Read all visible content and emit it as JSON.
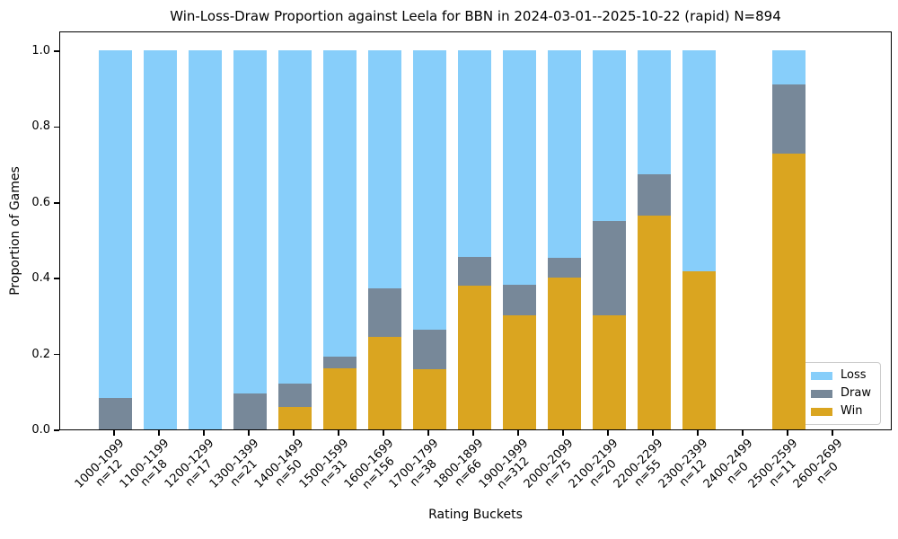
{
  "chart_data": {
    "type": "bar",
    "stacked": true,
    "title": "Win-Loss-Draw Proportion against Leela for BBN in 2024-03-01--2025-10-22 (rapid) N=894",
    "xlabel": "Rating Buckets",
    "ylabel": "Proportion of Games",
    "ylim": [
      0,
      1.05
    ],
    "grid": false,
    "yticks": [
      "0.0",
      "0.2",
      "0.4",
      "0.6",
      "0.8",
      "1.0"
    ],
    "colors": {
      "loss": "#87CEFA",
      "draw": "#778899",
      "win": "#DAA520"
    },
    "legend": {
      "position": "lower right",
      "entries": [
        {
          "key": "loss",
          "label": "Loss"
        },
        {
          "key": "draw",
          "label": "Draw"
        },
        {
          "key": "win",
          "label": "Win"
        }
      ]
    },
    "categories": [
      {
        "bucket": "1000-1099",
        "n_label": "n=12",
        "win": 0.0,
        "draw": 0.083,
        "loss": 0.917
      },
      {
        "bucket": "1100-1199",
        "n_label": "n=18",
        "win": 0.0,
        "draw": 0.0,
        "loss": 1.0
      },
      {
        "bucket": "1200-1299",
        "n_label": "n=17",
        "win": 0.0,
        "draw": 0.0,
        "loss": 1.0
      },
      {
        "bucket": "1300-1399",
        "n_label": "n=21",
        "win": 0.0,
        "draw": 0.095,
        "loss": 0.905
      },
      {
        "bucket": "1400-1499",
        "n_label": "n=50",
        "win": 0.06,
        "draw": 0.06,
        "loss": 0.88
      },
      {
        "bucket": "1500-1599",
        "n_label": "n=31",
        "win": 0.161,
        "draw": 0.032,
        "loss": 0.807
      },
      {
        "bucket": "1600-1699",
        "n_label": "n=156",
        "win": 0.244,
        "draw": 0.128,
        "loss": 0.628
      },
      {
        "bucket": "1700-1799",
        "n_label": "n=38",
        "win": 0.158,
        "draw": 0.105,
        "loss": 0.737
      },
      {
        "bucket": "1800-1899",
        "n_label": "n=66",
        "win": 0.379,
        "draw": 0.076,
        "loss": 0.545
      },
      {
        "bucket": "1900-1999",
        "n_label": "n=312",
        "win": 0.301,
        "draw": 0.08,
        "loss": 0.619
      },
      {
        "bucket": "2000-2099",
        "n_label": "n=75",
        "win": 0.4,
        "draw": 0.053,
        "loss": 0.547
      },
      {
        "bucket": "2100-2199",
        "n_label": "n=20",
        "win": 0.3,
        "draw": 0.25,
        "loss": 0.45
      },
      {
        "bucket": "2200-2299",
        "n_label": "n=55",
        "win": 0.564,
        "draw": 0.109,
        "loss": 0.327
      },
      {
        "bucket": "2300-2399",
        "n_label": "n=12",
        "win": 0.417,
        "draw": 0.0,
        "loss": 0.583
      },
      {
        "bucket": "2400-2499",
        "n_label": "n=0",
        "win": 0.0,
        "draw": 0.0,
        "loss": 0.0
      },
      {
        "bucket": "2500-2599",
        "n_label": "n=11",
        "win": 0.727,
        "draw": 0.182,
        "loss": 0.091
      },
      {
        "bucket": "2600-2699",
        "n_label": "n=0",
        "win": 0.0,
        "draw": 0.0,
        "loss": 0.0
      }
    ]
  }
}
